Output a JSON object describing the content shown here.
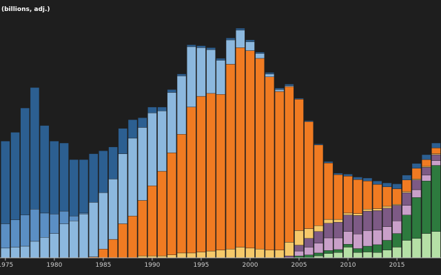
{
  "chart_data": {
    "type": "stacked-bar",
    "title": "(billions, adj.)",
    "x": [
      1975,
      1976,
      1977,
      1978,
      1979,
      1980,
      1981,
      1982,
      1983,
      1984,
      1985,
      1986,
      1987,
      1988,
      1989,
      1990,
      1991,
      1992,
      1993,
      1994,
      1995,
      1996,
      1997,
      1998,
      1999,
      2000,
      2001,
      2002,
      2003,
      2004,
      2005,
      2006,
      2007,
      2008,
      2009,
      2010,
      2011,
      2012,
      2013,
      2014,
      2015,
      2016,
      2017,
      2018,
      2019
    ],
    "xlim": [
      1974.45,
      2019.5
    ],
    "xticks": [
      1975,
      1980,
      1985,
      1990,
      1995,
      2000,
      2005,
      2010,
      2015
    ],
    "ylim": [
      0,
      26.5
    ],
    "series": [
      {
        "color": "#b5e0a6",
        "values": [
          0,
          0,
          0,
          0,
          0,
          0,
          0,
          0,
          0,
          0,
          0,
          0,
          0,
          0,
          0,
          0,
          0,
          0,
          0,
          0,
          0,
          0,
          0,
          0,
          0,
          0,
          0,
          0,
          0,
          0,
          0,
          0,
          0.2,
          0.45,
          0.55,
          1.1,
          0.55,
          0.6,
          0.55,
          0.8,
          1.1,
          1.8,
          2.0,
          2.5,
          2.7
        ]
      },
      {
        "color": "#2d7a3e",
        "values": [
          0,
          0,
          0,
          0,
          0,
          0,
          0,
          0,
          0,
          0,
          0,
          0,
          0,
          0,
          0,
          0,
          0,
          0,
          0,
          0,
          0,
          0,
          0,
          0,
          0,
          0,
          0,
          0,
          0,
          0,
          0.2,
          0.3,
          0.3,
          0.3,
          0.3,
          0.3,
          0.4,
          0.6,
          0.8,
          1.0,
          1.4,
          2.6,
          4.2,
          5.4,
          6.8
        ]
      },
      {
        "color": "#c9a0c9",
        "values": [
          0,
          0,
          0,
          0,
          0,
          0,
          0,
          0,
          0,
          0,
          0,
          0,
          0,
          0,
          0,
          0,
          0,
          0,
          0,
          0,
          0,
          0,
          0,
          0,
          0,
          0,
          0,
          0,
          0,
          0,
          0.5,
          0.8,
          1.0,
          1.3,
          1.2,
          1.3,
          1.5,
          1.6,
          1.5,
          1.4,
          1.3,
          1.0,
          0.8,
          0.6,
          0.5
        ]
      },
      {
        "color": "#7d5a85",
        "values": [
          0,
          0,
          0,
          0,
          0,
          0,
          0,
          0,
          0,
          0,
          0,
          0,
          0,
          0,
          0,
          0,
          0,
          0,
          0,
          0,
          0,
          0,
          0,
          0,
          0,
          0,
          0,
          0,
          0,
          0.2,
          0.6,
          0.9,
          1.2,
          1.5,
          1.6,
          1.7,
          1.9,
          2.0,
          2.0,
          1.9,
          1.6,
          1.3,
          1.0,
          0.8,
          0.6
        ]
      },
      {
        "color": "#f5c96a",
        "values": [
          0,
          0,
          0,
          0,
          0,
          0,
          0,
          0,
          0,
          0,
          0,
          0,
          0,
          0,
          0.2,
          0.2,
          0.2,
          0.3,
          0.5,
          0.5,
          0.6,
          0.7,
          0.8,
          0.9,
          1.1,
          1.0,
          0.9,
          0.8,
          0.8,
          1.4,
          1.5,
          1.0,
          0.6,
          0.4,
          0.3,
          0.2,
          0.2,
          0.2,
          0.2,
          0.2,
          0.1,
          0.1,
          0.1,
          0.1,
          0.1
        ]
      },
      {
        "color": "#f07b22",
        "values": [
          0,
          0,
          0,
          0,
          0,
          0,
          0,
          0,
          0,
          0.1,
          0.9,
          1.9,
          3.5,
          4.3,
          5.7,
          7.2,
          8.7,
          10.5,
          12.2,
          15.0,
          16.0,
          16.2,
          16.0,
          19.0,
          20.5,
          20.3,
          19.6,
          17.8,
          16.3,
          16.0,
          13.5,
          11.0,
          8.3,
          5.8,
          4.6,
          3.8,
          3.5,
          2.9,
          2.5,
          2.0,
          1.6,
          1.2,
          1.1,
          0.7,
          0.6
        ]
      },
      {
        "color": "#8cb8de",
        "values": [
          1.0,
          1.1,
          1.2,
          1.7,
          2.1,
          2.5,
          3.5,
          3.8,
          4.5,
          5.6,
          5.8,
          6.2,
          7.2,
          8.0,
          7.5,
          7.5,
          6.2,
          6.2,
          6.0,
          6.2,
          5.0,
          4.5,
          3.5,
          2.5,
          1.8,
          0.9,
          0.5,
          0.3,
          0.2,
          0.1,
          0,
          0,
          0,
          0,
          0,
          0,
          0,
          0,
          0,
          0,
          0,
          0,
          0,
          0,
          0
        ]
      },
      {
        "color": "#5b8fc4",
        "values": [
          2.5,
          2.8,
          3.2,
          3.3,
          2.5,
          2.0,
          1.3,
          0.5,
          0.1,
          0,
          0,
          0,
          0,
          0,
          0,
          0,
          0,
          0,
          0,
          0,
          0,
          0,
          0,
          0,
          0,
          0,
          0,
          0,
          0,
          0,
          0,
          0,
          0,
          0,
          0,
          0,
          0,
          0,
          0,
          0,
          0,
          0,
          0,
          0,
          0
        ]
      },
      {
        "color": "#2c5f91",
        "values": [
          8.5,
          9,
          11,
          12.5,
          9,
          7.5,
          7,
          5.8,
          5.5,
          5,
          4.3,
          3.3,
          2.6,
          1.9,
          1.0,
          0.6,
          0.4,
          0.3,
          0.2,
          0.2,
          0.2,
          0.2,
          0.2,
          0.2,
          0.2,
          0.2,
          0.15,
          0.15,
          0.15,
          0.15,
          0.1,
          0.1,
          0.1,
          0.15,
          0.15,
          0.2,
          0.25,
          0.3,
          0.35,
          0.4,
          0.5,
          0.5,
          0.5,
          0.5,
          0.5
        ]
      }
    ]
  }
}
